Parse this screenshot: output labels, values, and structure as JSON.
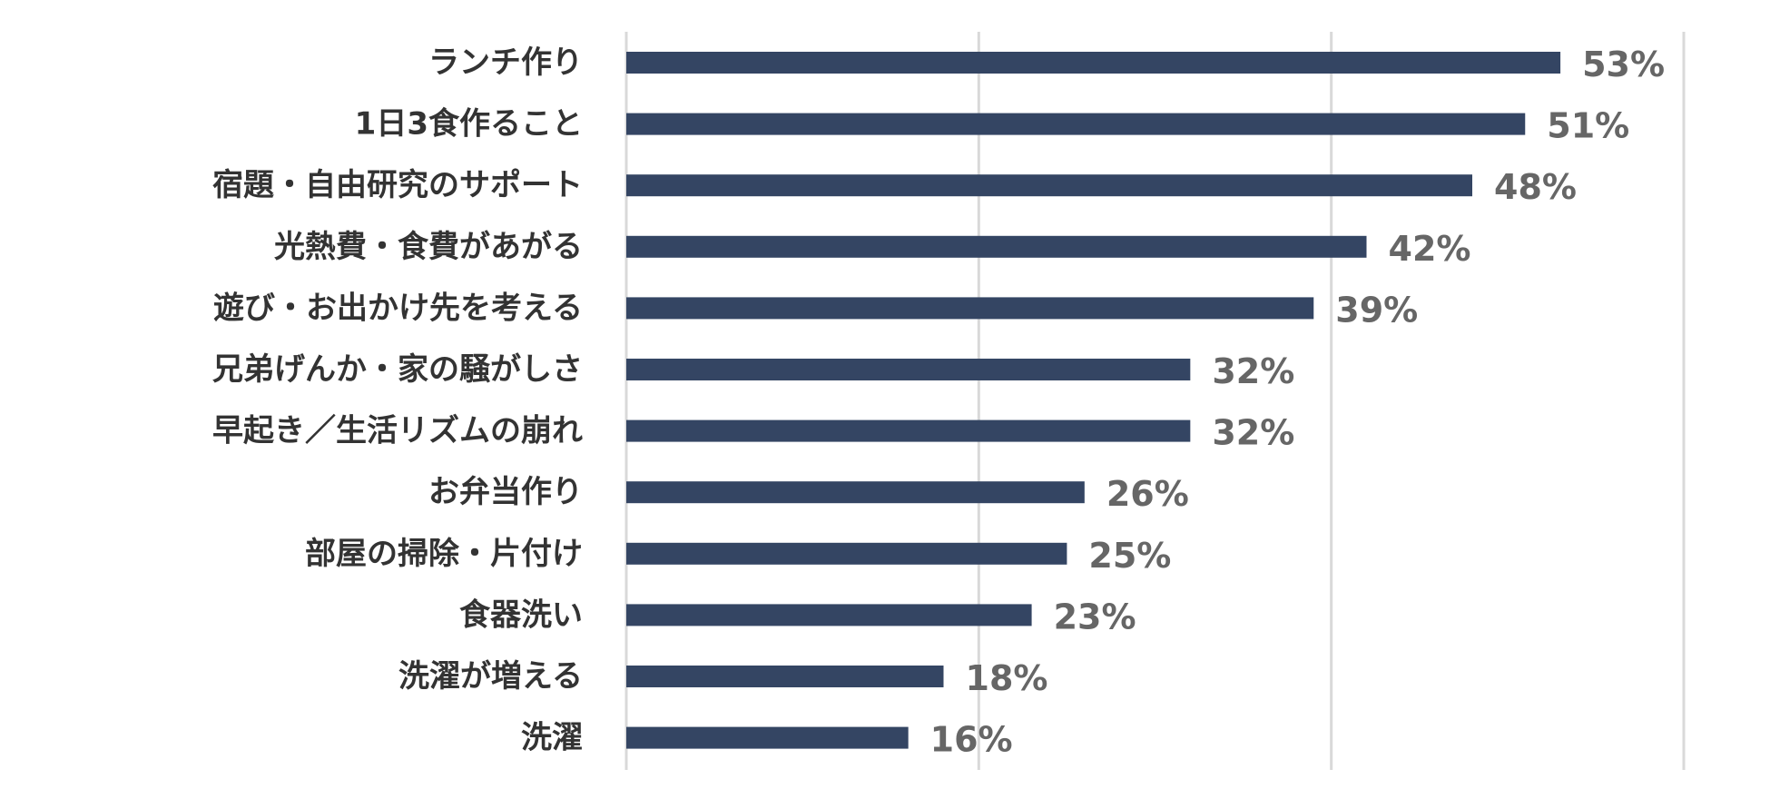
{
  "chart_data": {
    "type": "bar",
    "orientation": "horizontal",
    "categories": [
      "ランチ作り",
      "1日3食作ること",
      "宿題・自由研究のサポート",
      "光熱費・食費があがる",
      "遊び・お出かけ先を考える",
      "兄弟げんか・家の騒がしさ",
      "早起き／生活リズムの崩れ",
      "お弁当作り",
      "部屋の掃除・片付け",
      "食器洗い",
      "洗濯が増える",
      "洗濯"
    ],
    "values": [
      53,
      51,
      48,
      42,
      39,
      32,
      32,
      26,
      25,
      23,
      18,
      16
    ],
    "value_labels": [
      "53%",
      "51%",
      "48%",
      "42%",
      "39%",
      "32%",
      "32%",
      "26%",
      "25%",
      "23%",
      "18%",
      "16%"
    ],
    "xlim": [
      0,
      60
    ],
    "grid": true,
    "title": "",
    "xlabel": "",
    "ylabel": "",
    "colors": {
      "bar": "#344563",
      "value_label": "#666666",
      "category_label": "#333333",
      "grid": "#d9d9d9"
    }
  }
}
